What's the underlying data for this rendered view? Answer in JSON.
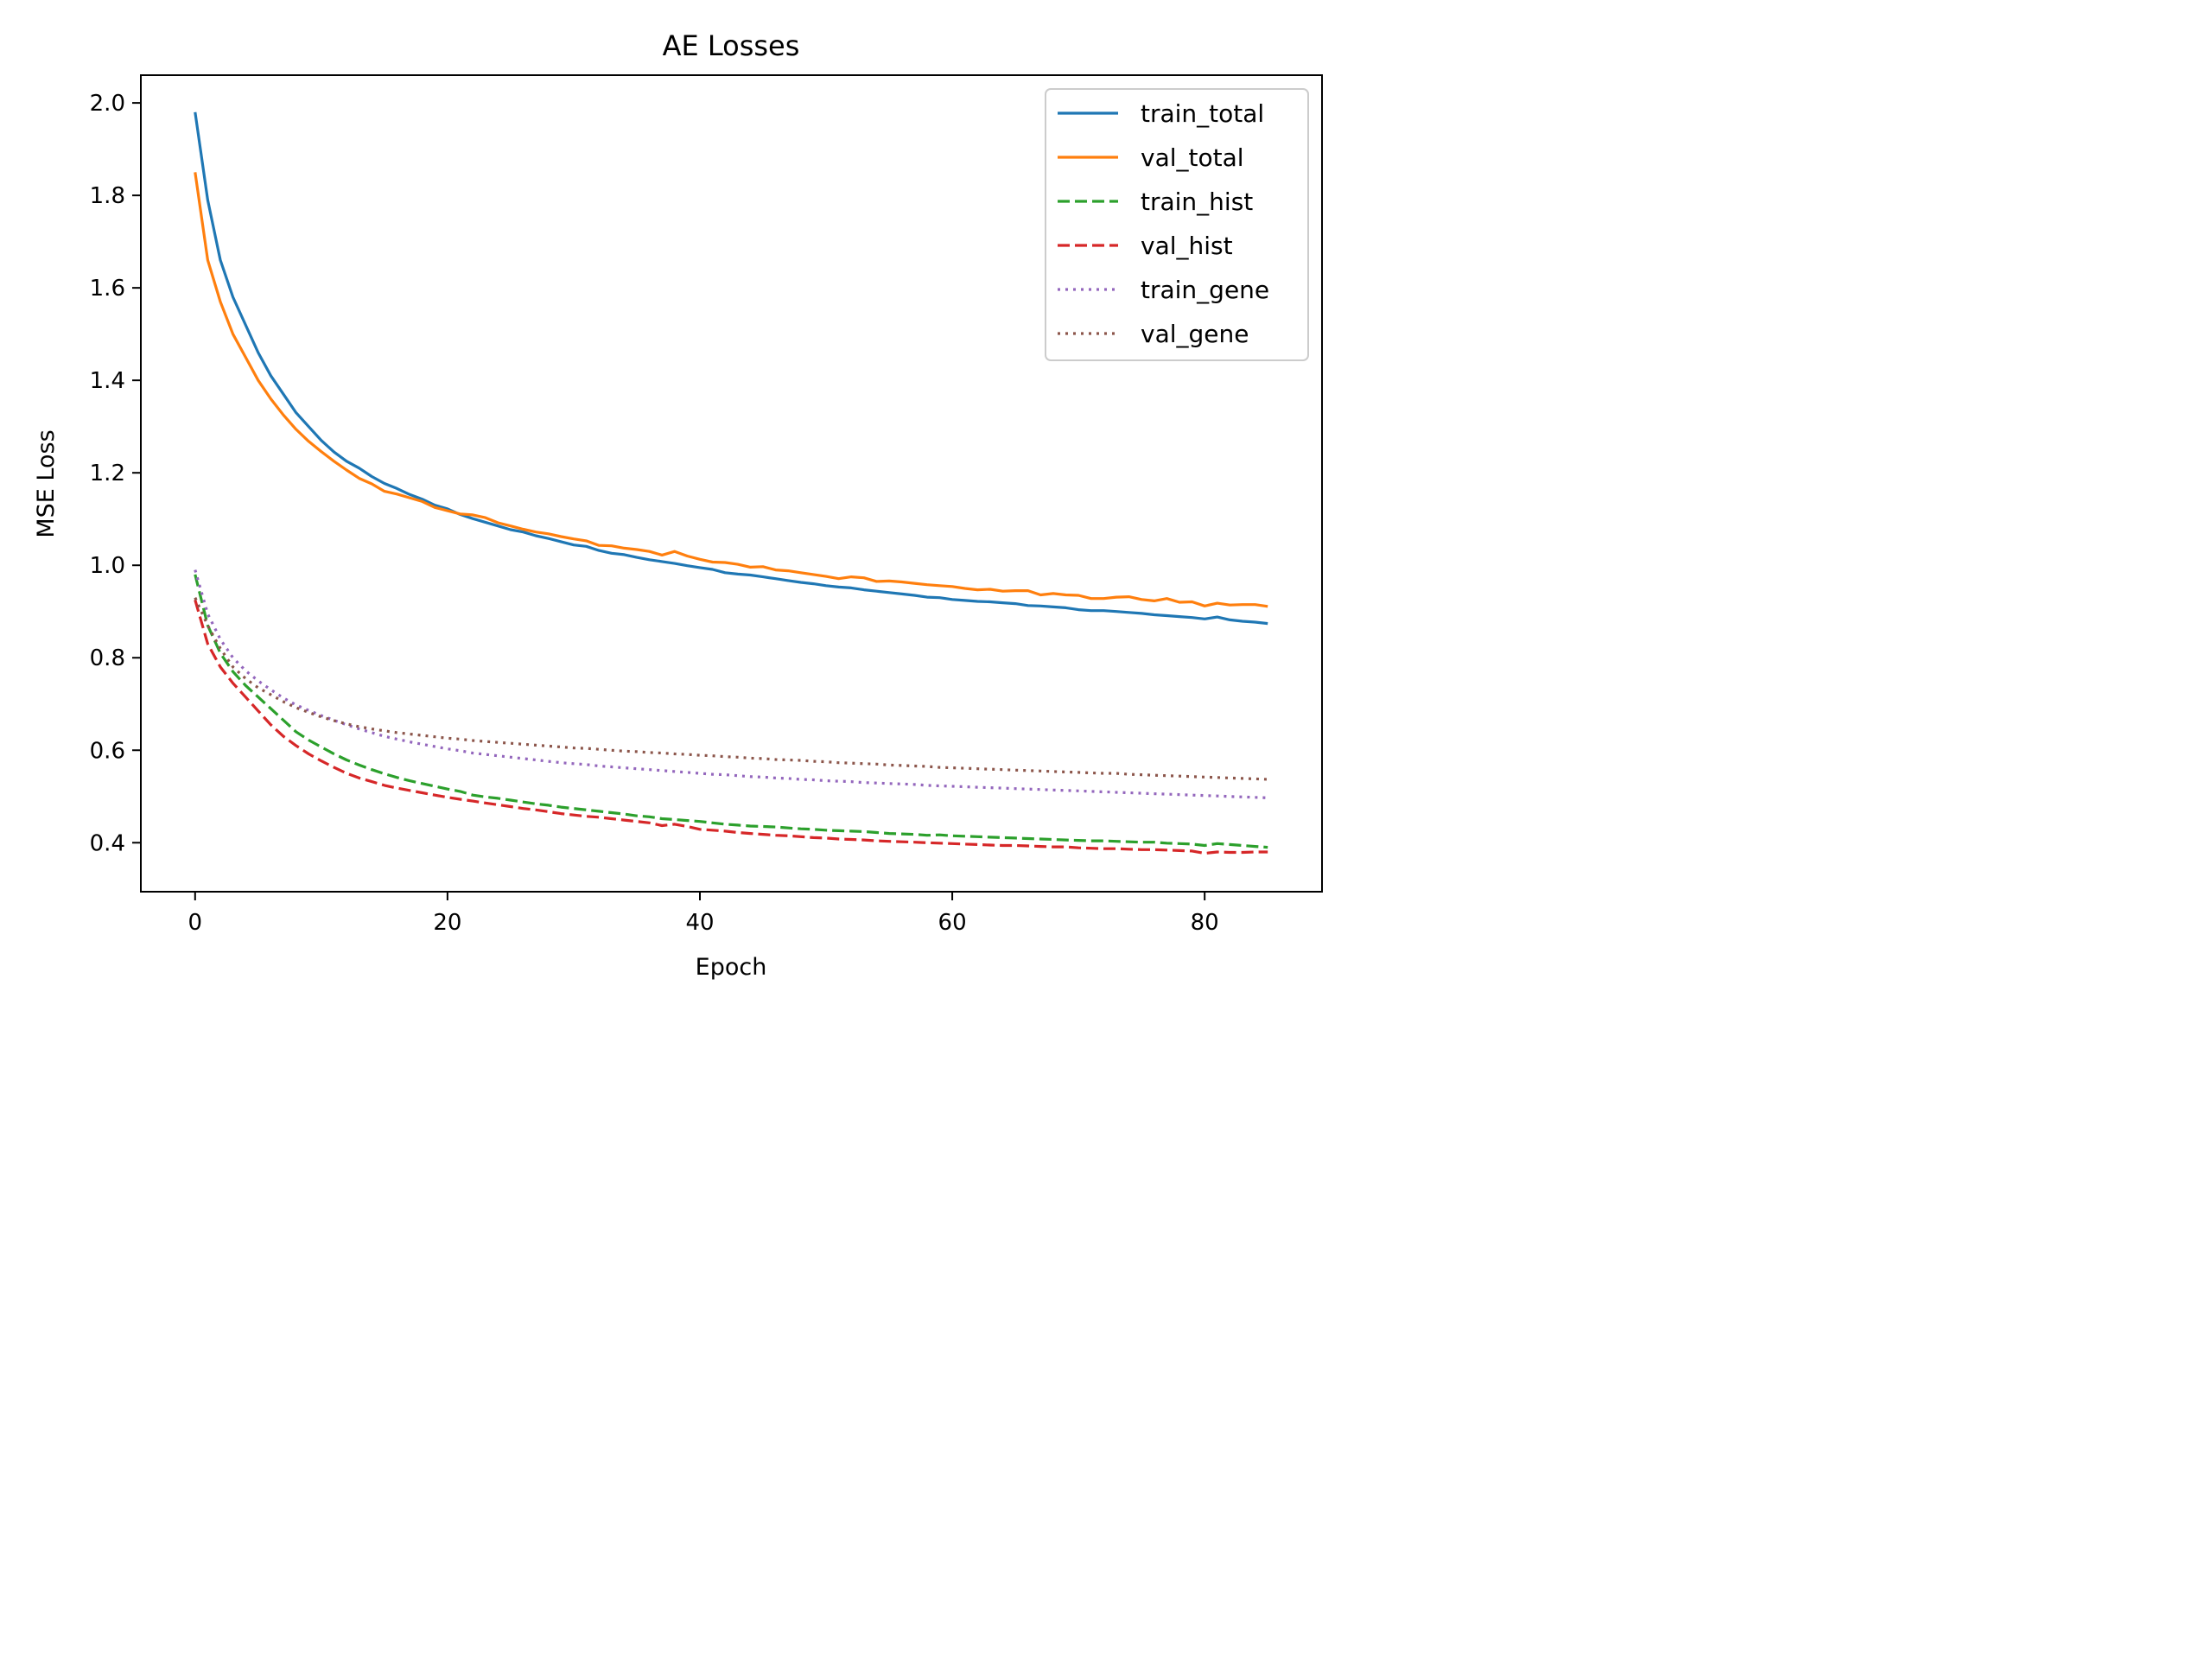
{
  "chart_data": {
    "type": "line",
    "title": "AE Losses",
    "xlabel": "Epoch",
    "ylabel": "MSE Loss",
    "xlim": [
      -4.3,
      89.3
    ],
    "ylim": [
      0.294,
      2.06
    ],
    "xticks": [
      0,
      20,
      40,
      60,
      80
    ],
    "yticks": [
      0.4,
      0.6,
      0.8,
      1.0,
      1.2,
      1.4,
      1.6,
      1.8,
      2.0
    ],
    "xtick_labels": [
      "0",
      "20",
      "40",
      "60",
      "80"
    ],
    "ytick_labels": [
      "0.4",
      "0.6",
      "0.8",
      "1.0",
      "1.2",
      "1.4",
      "1.6",
      "1.8",
      "2.0"
    ],
    "grid": false,
    "legend_position": "top-right",
    "series": [
      {
        "name": "train_total",
        "color": "#1f77b4",
        "style": "solid",
        "values": [
          1.98,
          1.79,
          1.66,
          1.58,
          1.52,
          1.46,
          1.41,
          1.37,
          1.33,
          1.3,
          1.27,
          1.245,
          1.225,
          1.21,
          1.192,
          1.177,
          1.166,
          1.153,
          1.143,
          1.13,
          1.122,
          1.11,
          1.101,
          1.093,
          1.085,
          1.077,
          1.072,
          1.064,
          1.058,
          1.051,
          1.044,
          1.041,
          1.032,
          1.026,
          1.023,
          1.017,
          1.012,
          1.008,
          1.004,
          0.999,
          0.995,
          0.991,
          0.984,
          0.981,
          0.979,
          0.975,
          0.971,
          0.967,
          0.963,
          0.96,
          0.956,
          0.953,
          0.951,
          0.947,
          0.944,
          0.941,
          0.938,
          0.935,
          0.931,
          0.93,
          0.926,
          0.924,
          0.922,
          0.921,
          0.919,
          0.917,
          0.913,
          0.912,
          0.91,
          0.908,
          0.904,
          0.902,
          0.902,
          0.9,
          0.898,
          0.896,
          0.893,
          0.891,
          0.889,
          0.887,
          0.884,
          0.888,
          0.882,
          0.879,
          0.877,
          0.874
        ]
      },
      {
        "name": "val_total",
        "color": "#ff7f0e",
        "style": "solid",
        "values": [
          1.85,
          1.66,
          1.57,
          1.5,
          1.45,
          1.4,
          1.36,
          1.325,
          1.294,
          1.268,
          1.246,
          1.225,
          1.206,
          1.188,
          1.176,
          1.16,
          1.154,
          1.146,
          1.138,
          1.125,
          1.118,
          1.111,
          1.109,
          1.103,
          1.092,
          1.085,
          1.078,
          1.072,
          1.068,
          1.062,
          1.057,
          1.053,
          1.043,
          1.042,
          1.037,
          1.034,
          1.03,
          1.022,
          1.03,
          1.02,
          1.013,
          1.007,
          1.006,
          1.002,
          0.996,
          0.997,
          0.99,
          0.988,
          0.984,
          0.98,
          0.976,
          0.971,
          0.975,
          0.973,
          0.965,
          0.966,
          0.964,
          0.961,
          0.958,
          0.956,
          0.954,
          0.95,
          0.947,
          0.948,
          0.944,
          0.945,
          0.945,
          0.936,
          0.939,
          0.936,
          0.935,
          0.928,
          0.928,
          0.931,
          0.932,
          0.926,
          0.923,
          0.928,
          0.92,
          0.921,
          0.912,
          0.918,
          0.914,
          0.915,
          0.915,
          0.911
        ]
      },
      {
        "name": "train_hist",
        "color": "#2ca02c",
        "style": "dashed",
        "values": [
          0.98,
          0.87,
          0.81,
          0.77,
          0.74,
          0.715,
          0.69,
          0.665,
          0.64,
          0.622,
          0.607,
          0.592,
          0.579,
          0.568,
          0.558,
          0.549,
          0.541,
          0.534,
          0.528,
          0.522,
          0.516,
          0.511,
          0.503,
          0.499,
          0.496,
          0.492,
          0.488,
          0.484,
          0.481,
          0.477,
          0.474,
          0.471,
          0.468,
          0.465,
          0.462,
          0.458,
          0.456,
          0.452,
          0.45,
          0.448,
          0.446,
          0.443,
          0.44,
          0.438,
          0.436,
          0.435,
          0.434,
          0.432,
          0.43,
          0.429,
          0.427,
          0.426,
          0.425,
          0.424,
          0.422,
          0.42,
          0.419,
          0.418,
          0.416,
          0.417,
          0.415,
          0.414,
          0.413,
          0.412,
          0.411,
          0.41,
          0.409,
          0.408,
          0.407,
          0.406,
          0.405,
          0.404,
          0.404,
          0.403,
          0.402,
          0.401,
          0.401,
          0.399,
          0.398,
          0.397,
          0.394,
          0.398,
          0.396,
          0.394,
          0.392,
          0.39
        ]
      },
      {
        "name": "val_hist",
        "color": "#d62728",
        "style": "dashed",
        "values": [
          0.925,
          0.83,
          0.78,
          0.745,
          0.715,
          0.685,
          0.655,
          0.63,
          0.61,
          0.592,
          0.577,
          0.563,
          0.55,
          0.54,
          0.532,
          0.524,
          0.518,
          0.513,
          0.508,
          0.503,
          0.498,
          0.494,
          0.49,
          0.486,
          0.482,
          0.478,
          0.474,
          0.471,
          0.467,
          0.463,
          0.46,
          0.457,
          0.455,
          0.452,
          0.449,
          0.446,
          0.443,
          0.437,
          0.44,
          0.435,
          0.429,
          0.427,
          0.425,
          0.422,
          0.42,
          0.418,
          0.416,
          0.415,
          0.413,
          0.411,
          0.41,
          0.408,
          0.407,
          0.406,
          0.404,
          0.403,
          0.402,
          0.401,
          0.4,
          0.399,
          0.398,
          0.397,
          0.396,
          0.395,
          0.394,
          0.394,
          0.393,
          0.392,
          0.391,
          0.391,
          0.389,
          0.388,
          0.387,
          0.387,
          0.386,
          0.385,
          0.385,
          0.384,
          0.383,
          0.382,
          0.377,
          0.38,
          0.379,
          0.379,
          0.38,
          0.38
        ]
      },
      {
        "name": "train_gene",
        "color": "#9467bd",
        "style": "dotted",
        "values": [
          0.99,
          0.895,
          0.84,
          0.8,
          0.772,
          0.75,
          0.731,
          0.713,
          0.698,
          0.686,
          0.675,
          0.665,
          0.655,
          0.646,
          0.638,
          0.63,
          0.624,
          0.618,
          0.613,
          0.608,
          0.603,
          0.599,
          0.594,
          0.591,
          0.588,
          0.585,
          0.582,
          0.579,
          0.576,
          0.573,
          0.571,
          0.569,
          0.566,
          0.564,
          0.562,
          0.56,
          0.558,
          0.556,
          0.554,
          0.552,
          0.55,
          0.548,
          0.547,
          0.545,
          0.543,
          0.542,
          0.54,
          0.539,
          0.537,
          0.536,
          0.534,
          0.533,
          0.532,
          0.53,
          0.529,
          0.528,
          0.527,
          0.526,
          0.524,
          0.523,
          0.522,
          0.521,
          0.52,
          0.519,
          0.518,
          0.517,
          0.516,
          0.515,
          0.514,
          0.513,
          0.512,
          0.511,
          0.51,
          0.509,
          0.508,
          0.507,
          0.506,
          0.505,
          0.504,
          0.503,
          0.502,
          0.501,
          0.5,
          0.499,
          0.498,
          0.497
        ]
      },
      {
        "name": "val_gene",
        "color": "#8c564b",
        "style": "dotted",
        "values": [
          0.93,
          0.87,
          0.82,
          0.78,
          0.755,
          0.735,
          0.72,
          0.705,
          0.692,
          0.682,
          0.672,
          0.664,
          0.657,
          0.651,
          0.646,
          0.642,
          0.638,
          0.635,
          0.632,
          0.629,
          0.626,
          0.624,
          0.621,
          0.619,
          0.617,
          0.615,
          0.613,
          0.611,
          0.609,
          0.607,
          0.605,
          0.604,
          0.602,
          0.6,
          0.598,
          0.597,
          0.595,
          0.594,
          0.592,
          0.591,
          0.589,
          0.588,
          0.586,
          0.585,
          0.583,
          0.582,
          0.58,
          0.579,
          0.578,
          0.576,
          0.575,
          0.573,
          0.572,
          0.571,
          0.57,
          0.568,
          0.567,
          0.566,
          0.565,
          0.563,
          0.562,
          0.561,
          0.56,
          0.559,
          0.558,
          0.557,
          0.556,
          0.555,
          0.554,
          0.553,
          0.552,
          0.551,
          0.55,
          0.55,
          0.548,
          0.547,
          0.546,
          0.545,
          0.544,
          0.543,
          0.542,
          0.541,
          0.54,
          0.539,
          0.538,
          0.537
        ]
      }
    ]
  }
}
